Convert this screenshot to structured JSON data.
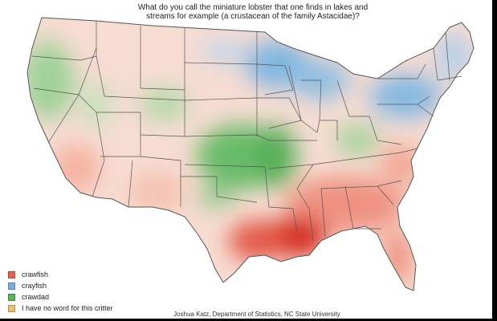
{
  "title": "What do you call the miniature lobster that one finds in lakes and streams for example (a crustacean of the family Astacidae)?",
  "legend": [
    {
      "label": "crawfish",
      "color": "#e4604e"
    },
    {
      "label": "crayfish",
      "color": "#7aaee0"
    },
    {
      "label": "crawdad",
      "color": "#58b25d"
    },
    {
      "label": "I have no word for this critter",
      "color": "#e8c36a"
    }
  ],
  "credit": "Joshua Katz, Department of Statistics, NC State University",
  "colors": {
    "crawfish_light": "#f6c4b4",
    "crawfish_dark": "#d42b1e",
    "crayfish": "#8fbde3",
    "crawdad": "#7cc47f",
    "state_lines": "#555555"
  }
}
